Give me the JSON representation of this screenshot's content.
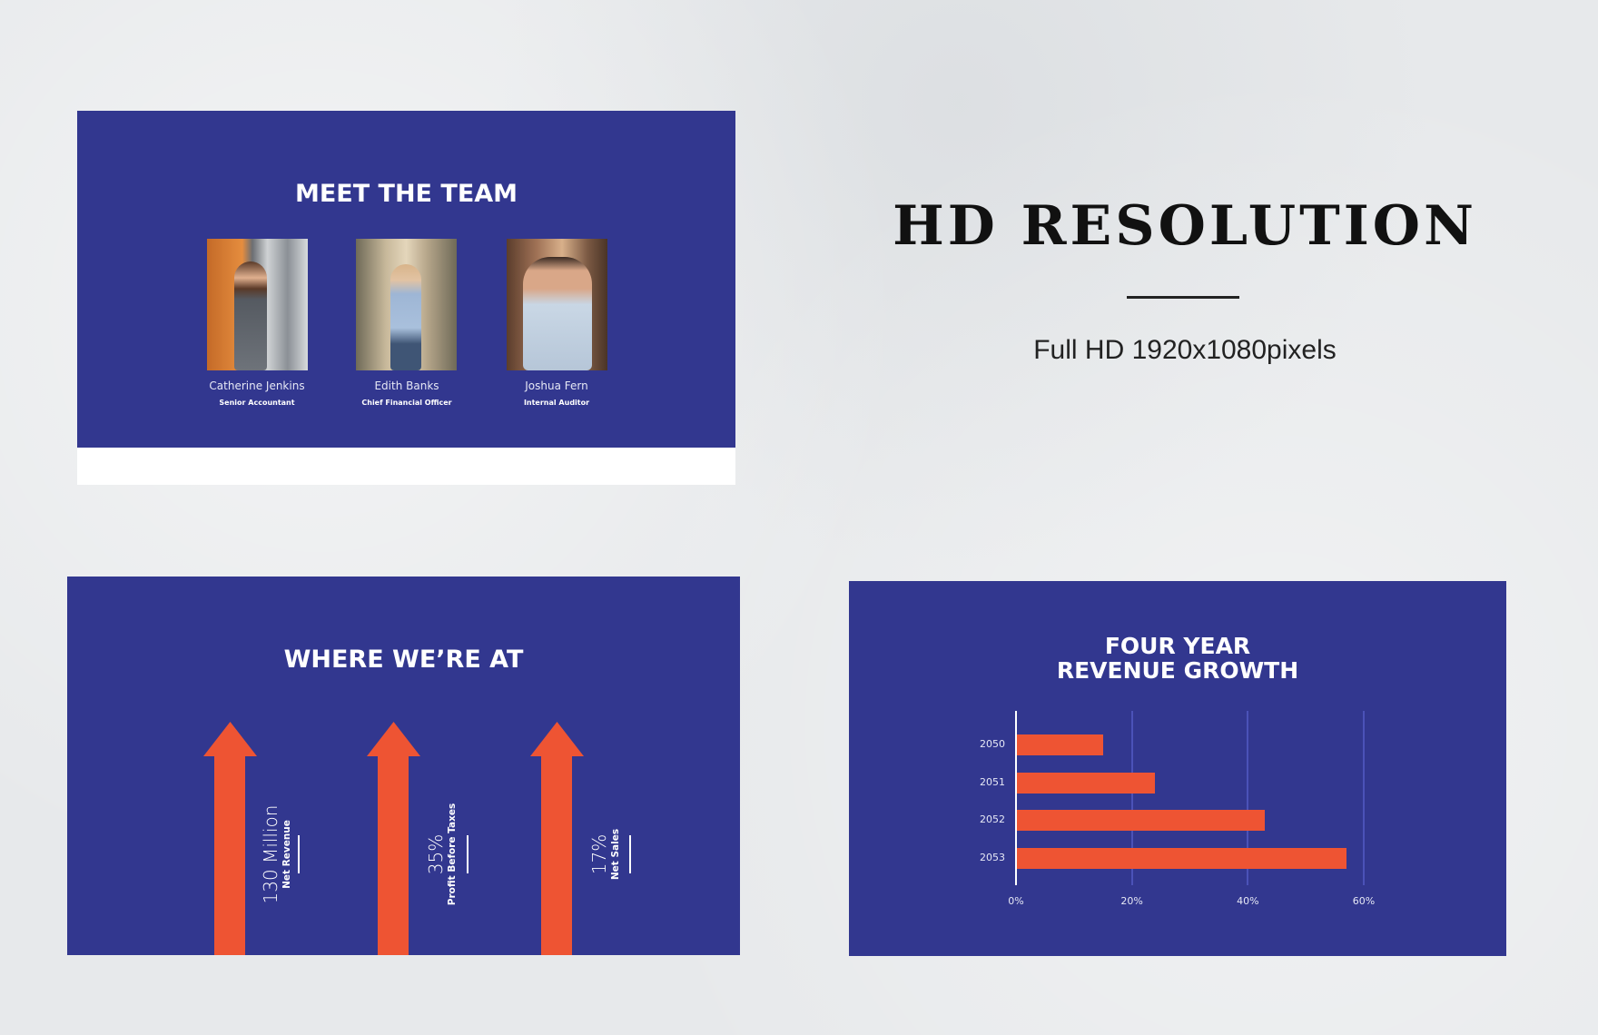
{
  "colors": {
    "slide_bg": "#32378f",
    "accent": "#ee5433",
    "page_bg": "#e7e9eb"
  },
  "team_slide": {
    "title": "MEET THE TEAM",
    "members": [
      {
        "name": "Catherine Jenkins",
        "role": "Senior Accountant"
      },
      {
        "name": "Edith Banks",
        "role": "Chief Financial Officer"
      },
      {
        "name": "Joshua Fern",
        "role": "Internal Auditor"
      }
    ]
  },
  "hd": {
    "title": "HD RESOLUTION",
    "subtitle": "Full HD 1920x1080pixels"
  },
  "stats_slide": {
    "title": "WHERE WE’RE AT",
    "stats": [
      {
        "value": "130 Million",
        "label": "Net Revenue"
      },
      {
        "value": "35%",
        "label": "Profit Before Taxes"
      },
      {
        "value": "17%",
        "label": "Net Sales"
      }
    ]
  },
  "chart_slide": {
    "title_line1": "FOUR YEAR",
    "title_line2": "REVENUE GROWTH"
  },
  "chart_data": {
    "type": "bar",
    "orientation": "horizontal",
    "categories": [
      "2050",
      "2051",
      "2052",
      "2053"
    ],
    "values": [
      15,
      24,
      43,
      57
    ],
    "xlim": [
      0,
      60
    ],
    "xticks": [
      "0%",
      "20%",
      "40%",
      "60%"
    ],
    "grid": true,
    "color": "#ee5433"
  }
}
